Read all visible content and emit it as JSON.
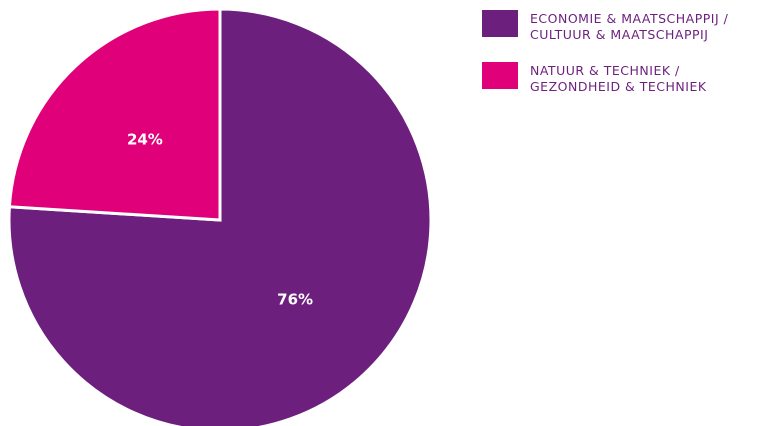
{
  "chart_data": {
    "type": "pie",
    "title": "",
    "slices": [
      {
        "label_line1": "economie & maatschappij /",
        "label_line2": "cultuur & maatschappij",
        "value": 76,
        "value_label": "76%",
        "color": "#6d1f7e"
      },
      {
        "label_line1": "natuur & techniek /",
        "label_line2": "gezondheid & techniek",
        "value": 24,
        "value_label": "24%",
        "color": "#e0007a"
      }
    ],
    "start_angle": "12 o'clock",
    "direction": "clockwise",
    "legend_position": "top-right"
  }
}
